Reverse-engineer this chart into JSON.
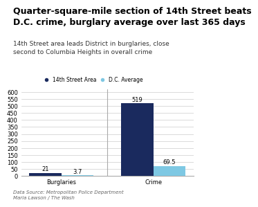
{
  "title": "Quarter-square-mile section of 14th Street beats\nD.C. crime, burglary average over last 365 days",
  "subtitle": "14th Street area leads District in burglaries, close\nsecond to Columbia Heights in overall crime",
  "categories": [
    "Burglaries",
    "Crime"
  ],
  "street_values": [
    21,
    519
  ],
  "dc_values": [
    3.7,
    69.5
  ],
  "street_color": "#1a2a5e",
  "dc_color": "#7ec8e3",
  "ylim": [
    0,
    620
  ],
  "yticks": [
    0,
    50,
    100,
    150,
    200,
    250,
    300,
    350,
    400,
    450,
    500,
    550,
    600
  ],
  "legend_street": "14th Street Area",
  "legend_dc": "D.C. Average",
  "footnote1": "Data Source: Metropolitan Police Department",
  "footnote2": "Maria Lawson / The Wash",
  "title_fontsize": 9,
  "subtitle_fontsize": 6.5,
  "bar_width": 0.35,
  "background_color": "#ffffff",
  "grid_color": "#cccccc",
  "label_fontsize": 6,
  "axis_fontsize": 6,
  "footnote_fontsize": 5
}
